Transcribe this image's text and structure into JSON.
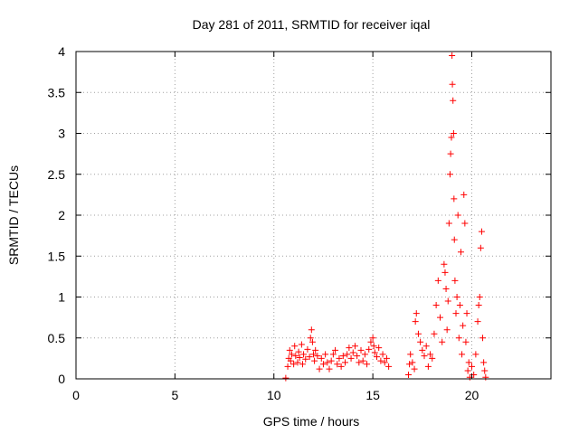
{
  "chart_data": {
    "type": "scatter",
    "title": "Day 281 of 2011, SRMTID for receiver iqal",
    "xlabel": "GPS time / hours",
    "ylabel": "SRMTID / TECUs",
    "xlim": [
      0,
      24
    ],
    "ylim": [
      0,
      4
    ],
    "xticks": [
      0,
      5,
      10,
      15,
      20
    ],
    "yticks": [
      0,
      0.5,
      1,
      1.5,
      2,
      2.5,
      3,
      3.5,
      4
    ],
    "ytick_labels": [
      "0",
      "0.5",
      "1",
      "1.5",
      "2",
      "2.5",
      "3",
      "3.5",
      "4"
    ],
    "grid": true,
    "marker": "+",
    "series": [
      {
        "name": "SRMTID",
        "color": "#ff0000",
        "points": [
          [
            10.6,
            0.01
          ],
          [
            10.7,
            0.15
          ],
          [
            10.75,
            0.25
          ],
          [
            10.8,
            0.35
          ],
          [
            10.85,
            0.22
          ],
          [
            10.9,
            0.3
          ],
          [
            11.0,
            0.18
          ],
          [
            11.05,
            0.4
          ],
          [
            11.1,
            0.28
          ],
          [
            11.2,
            0.2
          ],
          [
            11.25,
            0.33
          ],
          [
            11.3,
            0.26
          ],
          [
            11.4,
            0.42
          ],
          [
            11.45,
            0.18
          ],
          [
            11.5,
            0.3
          ],
          [
            11.6,
            0.24
          ],
          [
            11.7,
            0.36
          ],
          [
            11.8,
            0.27
          ],
          [
            11.85,
            0.5
          ],
          [
            11.9,
            0.6
          ],
          [
            11.95,
            0.45
          ],
          [
            12.0,
            0.3
          ],
          [
            12.05,
            0.22
          ],
          [
            12.1,
            0.35
          ],
          [
            12.2,
            0.28
          ],
          [
            12.3,
            0.12
          ],
          [
            12.4,
            0.25
          ],
          [
            12.5,
            0.18
          ],
          [
            12.6,
            0.3
          ],
          [
            12.7,
            0.2
          ],
          [
            12.8,
            0.12
          ],
          [
            12.9,
            0.22
          ],
          [
            13.0,
            0.3
          ],
          [
            13.1,
            0.35
          ],
          [
            13.2,
            0.18
          ],
          [
            13.3,
            0.25
          ],
          [
            13.4,
            0.15
          ],
          [
            13.5,
            0.28
          ],
          [
            13.6,
            0.2
          ],
          [
            13.7,
            0.3
          ],
          [
            13.8,
            0.38
          ],
          [
            13.9,
            0.25
          ],
          [
            14.0,
            0.32
          ],
          [
            14.1,
            0.4
          ],
          [
            14.2,
            0.28
          ],
          [
            14.3,
            0.2
          ],
          [
            14.4,
            0.35
          ],
          [
            14.5,
            0.22
          ],
          [
            14.6,
            0.3
          ],
          [
            14.7,
            0.18
          ],
          [
            14.8,
            0.36
          ],
          [
            14.9,
            0.45
          ],
          [
            15.0,
            0.5
          ],
          [
            15.05,
            0.4
          ],
          [
            15.1,
            0.32
          ],
          [
            15.2,
            0.27
          ],
          [
            15.3,
            0.38
          ],
          [
            15.4,
            0.22
          ],
          [
            15.5,
            0.3
          ],
          [
            15.6,
            0.2
          ],
          [
            15.7,
            0.25
          ],
          [
            15.8,
            0.15
          ],
          [
            16.8,
            0.05
          ],
          [
            16.85,
            0.18
          ],
          [
            16.9,
            0.3
          ],
          [
            17.0,
            0.2
          ],
          [
            17.1,
            0.12
          ],
          [
            17.15,
            0.7
          ],
          [
            17.2,
            0.8
          ],
          [
            17.3,
            0.55
          ],
          [
            17.4,
            0.45
          ],
          [
            17.5,
            0.35
          ],
          [
            17.6,
            0.28
          ],
          [
            17.7,
            0.4
          ],
          [
            17.8,
            0.15
          ],
          [
            17.9,
            0.3
          ],
          [
            18.0,
            0.25
          ],
          [
            18.1,
            0.55
          ],
          [
            18.2,
            0.9
          ],
          [
            18.3,
            1.2
          ],
          [
            18.4,
            0.75
          ],
          [
            18.5,
            0.45
          ],
          [
            18.6,
            1.4
          ],
          [
            18.65,
            1.3
          ],
          [
            18.7,
            1.1
          ],
          [
            18.75,
            0.6
          ],
          [
            18.8,
            0.95
          ],
          [
            18.85,
            1.9
          ],
          [
            18.9,
            2.5
          ],
          [
            18.93,
            2.75
          ],
          [
            18.97,
            2.95
          ],
          [
            19.0,
            3.95
          ],
          [
            19.02,
            3.6
          ],
          [
            19.05,
            3.4
          ],
          [
            19.08,
            3.0
          ],
          [
            19.1,
            2.2
          ],
          [
            19.12,
            1.7
          ],
          [
            19.15,
            1.2
          ],
          [
            19.2,
            0.8
          ],
          [
            19.25,
            1.0
          ],
          [
            19.3,
            2.0
          ],
          [
            19.35,
            0.5
          ],
          [
            19.4,
            0.9
          ],
          [
            19.45,
            1.55
          ],
          [
            19.5,
            0.3
          ],
          [
            19.55,
            0.65
          ],
          [
            19.6,
            2.25
          ],
          [
            19.65,
            1.9
          ],
          [
            19.7,
            0.45
          ],
          [
            19.75,
            0.8
          ],
          [
            19.8,
            0.1
          ],
          [
            19.85,
            0.2
          ],
          [
            19.9,
            0.02
          ],
          [
            20.0,
            0.15
          ],
          [
            20.1,
            0.05
          ],
          [
            20.2,
            0.3
          ],
          [
            20.3,
            0.7
          ],
          [
            20.35,
            0.9
          ],
          [
            20.4,
            1.0
          ],
          [
            20.45,
            1.6
          ],
          [
            20.5,
            1.8
          ],
          [
            20.55,
            0.5
          ],
          [
            20.6,
            0.2
          ],
          [
            20.65,
            0.1
          ],
          [
            20.7,
            0.02
          ]
        ]
      }
    ]
  }
}
